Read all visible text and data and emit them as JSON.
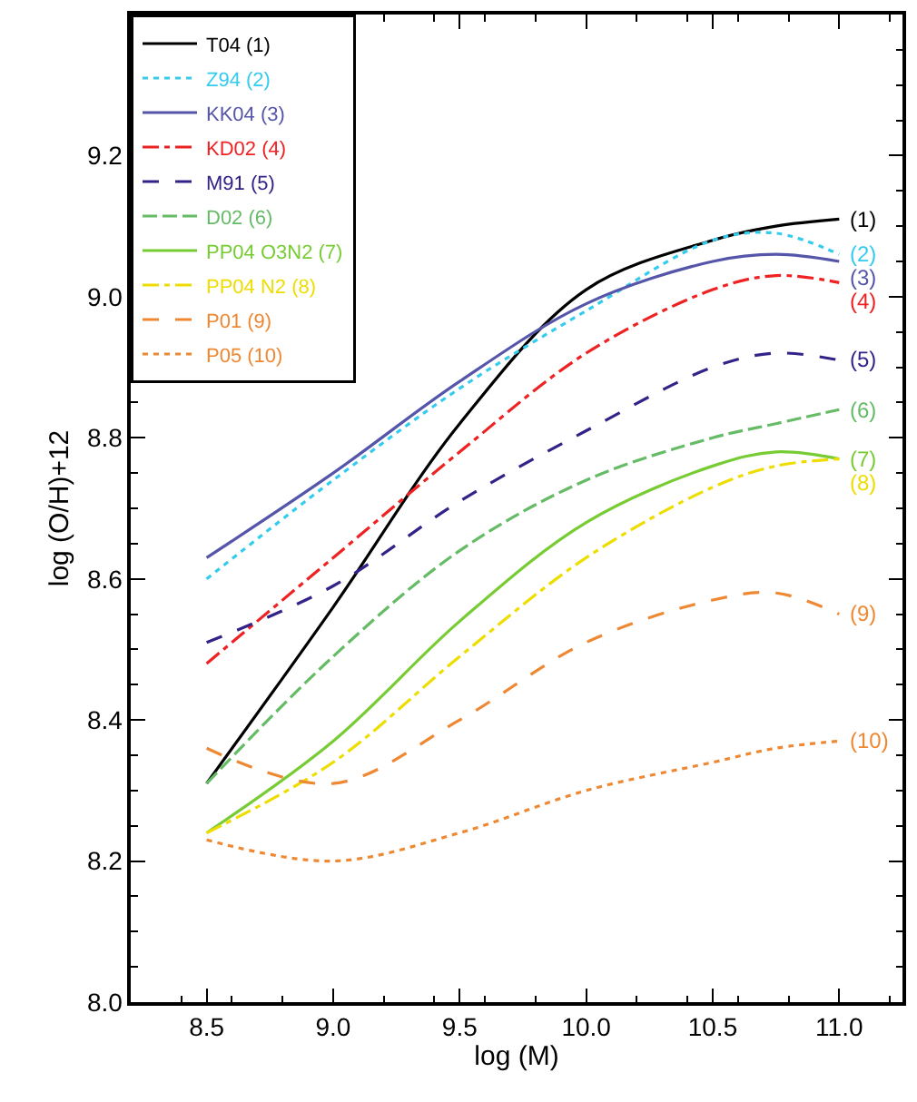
{
  "chart_data": {
    "type": "line",
    "xlabel": "log (M)",
    "ylabel": "log (O/H)+12",
    "x": [
      8.5,
      9.0,
      9.5,
      10.0,
      10.5,
      10.75,
      11.0
    ],
    "xlim": [
      8.2,
      11.25
    ],
    "xticks": [
      8.5,
      {
        "value": 9,
        "label": "9.0"
      },
      9.5,
      {
        "value": 10,
        "label": "10.0"
      },
      10.5,
      {
        "value": 11,
        "label": "11.0"
      }
    ],
    "ylim": [
      8.0,
      9.4
    ],
    "yticks": [
      {
        "value": 8,
        "label": "8.0"
      },
      8.2,
      8.4,
      8.6,
      8.8,
      {
        "value": 9,
        "label": "9.0"
      },
      9.2
    ],
    "legend": "top left",
    "marker": "none",
    "series": [
      {
        "name": "T04 (1)",
        "color": "#000000",
        "line_style": "solid",
        "values": [
          8.31,
          8.56,
          8.82,
          9.01,
          9.08,
          9.1,
          9.11
        ]
      },
      {
        "name": "Z94 (2)",
        "color": "#33ccee",
        "line_style": "dotted",
        "values": [
          8.6,
          8.74,
          8.87,
          8.98,
          9.08,
          9.09,
          9.06
        ]
      },
      {
        "name": "KK04 (3)",
        "color": "#5555aa",
        "line_style": "solid",
        "values": [
          8.63,
          8.75,
          8.88,
          8.99,
          9.05,
          9.06,
          9.05
        ]
      },
      {
        "name": "KD02 (4)",
        "color": "#ee2222",
        "line_style": "dashdot",
        "values": [
          8.48,
          8.63,
          8.78,
          8.92,
          9.01,
          9.03,
          9.02
        ]
      },
      {
        "name": "M91 (5)",
        "color": "#332288",
        "line_style": "dashed",
        "values": [
          8.51,
          8.59,
          8.71,
          8.81,
          8.9,
          8.92,
          8.91
        ]
      },
      {
        "name": "D02 (6)",
        "color": "#66bb66",
        "line_style": "longdash",
        "values": [
          8.31,
          8.49,
          8.64,
          8.74,
          8.8,
          8.82,
          8.84
        ]
      },
      {
        "name": "PP04 O3N2 (7)",
        "color": "#77cc33",
        "line_style": "solid",
        "values": [
          8.24,
          8.37,
          8.54,
          8.68,
          8.76,
          8.78,
          8.77
        ]
      },
      {
        "name": "PP04 N2 (8)",
        "color": "#eedd00",
        "line_style": "dashdot",
        "values": [
          8.24,
          8.34,
          8.49,
          8.63,
          8.73,
          8.76,
          8.77
        ]
      },
      {
        "name": "P01 (9)",
        "color": "#ee8833",
        "line_style": "dashed",
        "values": [
          8.36,
          8.31,
          8.4,
          8.51,
          8.57,
          8.58,
          8.55
        ]
      },
      {
        "name": "P05 (10)",
        "color": "#ee8833",
        "line_style": "dotted",
        "values": [
          8.23,
          8.2,
          8.24,
          8.3,
          8.34,
          8.36,
          8.37
        ]
      }
    ],
    "annotations": [
      "(1)",
      "(2)",
      "(3)",
      "(4)",
      "(5)",
      "(6)",
      "(7)",
      "(8)",
      "(9)",
      "(10)"
    ]
  }
}
